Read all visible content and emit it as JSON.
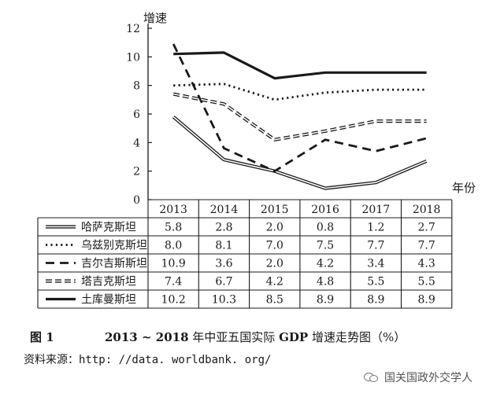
{
  "chart_data": {
    "type": "line",
    "categories": [
      "2013",
      "2014",
      "2015",
      "2016",
      "2017",
      "2018"
    ],
    "ylabel": "增速",
    "xlabel": "年份",
    "ylim": [
      0,
      12
    ],
    "yticks": [
      "0",
      "2",
      "4",
      "6",
      "8",
      "10",
      "12"
    ],
    "grid": false,
    "legend_placement": "table below chart",
    "series": [
      {
        "name": "哈萨克斯坦",
        "style": "double-thin",
        "values": [
          5.8,
          2.8,
          2.0,
          0.8,
          1.2,
          2.7
        ],
        "labels": [
          "5.8",
          "2.8",
          "2.0",
          "0.8",
          "1.2",
          "2.7"
        ]
      },
      {
        "name": "乌兹别克斯坦",
        "style": "dotted",
        "values": [
          8.0,
          8.1,
          7.0,
          7.5,
          7.7,
          7.7
        ],
        "labels": [
          "8.0",
          "8.1",
          "7.0",
          "7.5",
          "7.7",
          "7.7"
        ]
      },
      {
        "name": "吉尔吉斯斯坦",
        "style": "dashed",
        "values": [
          10.9,
          3.6,
          2.0,
          4.2,
          3.4,
          4.3
        ],
        "labels": [
          "10.9",
          "3.6",
          "2.0",
          "4.2",
          "3.4",
          "4.3"
        ]
      },
      {
        "name": "塔吉克斯坦",
        "style": "double-dashed",
        "values": [
          7.4,
          6.7,
          4.2,
          4.8,
          5.5,
          5.5
        ],
        "labels": [
          "7.4",
          "6.7",
          "4.2",
          "4.8",
          "5.5",
          "5.5"
        ]
      },
      {
        "name": "土库曼斯坦",
        "style": "thick",
        "values": [
          10.2,
          10.3,
          8.5,
          8.9,
          8.9,
          8.9
        ],
        "labels": [
          "10.2",
          "10.3",
          "8.5",
          "8.9",
          "8.9",
          "8.9"
        ]
      }
    ],
    "colors": {
      "line": "#1a1a1a",
      "background": "#ffffff"
    }
  },
  "caption": {
    "fig_no": "图 1",
    "title_years": "2013 ~ 2018",
    "title_mid": " 年中亚五国实际 ",
    "title_gdp": "GDP",
    "title_end": " 增速走势图（%）"
  },
  "source": {
    "label": "资料来源：",
    "url": "http: //data. worldbank. org/"
  },
  "watermark": {
    "icon": "wechat-icon",
    "text": "国关国政外交学人"
  }
}
